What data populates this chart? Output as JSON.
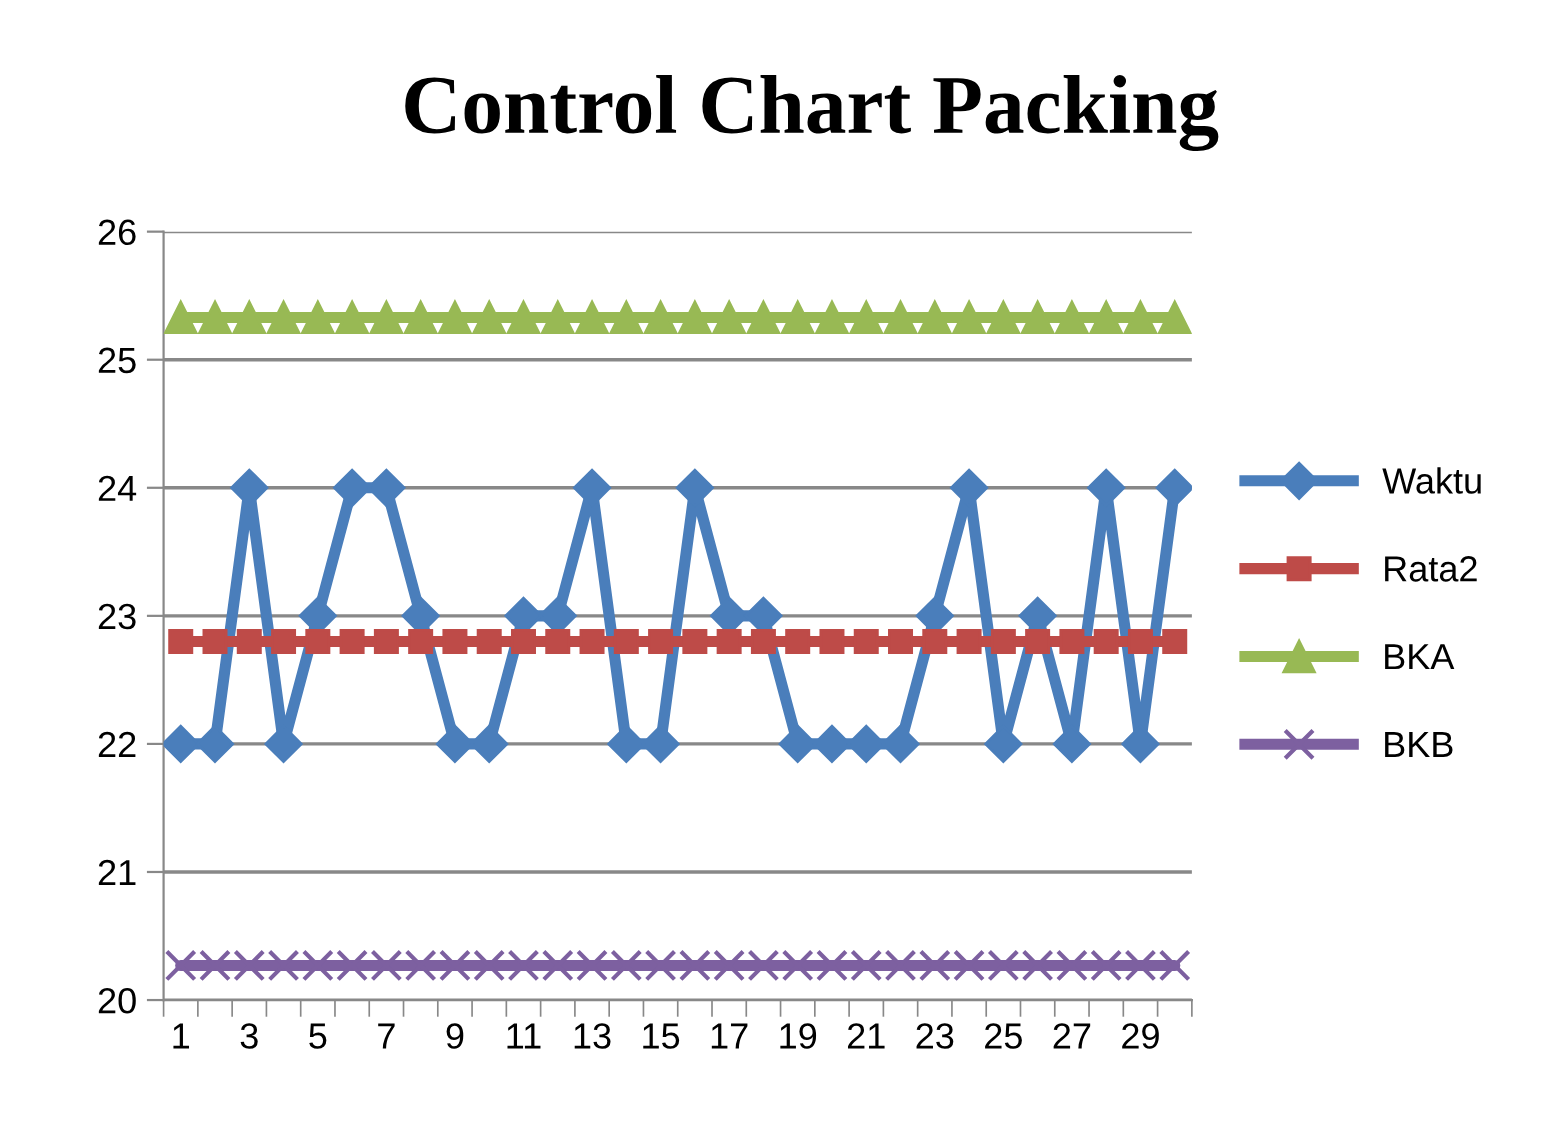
{
  "chart_data": {
    "type": "line",
    "title": "Control Chart Packing",
    "categories": [
      "1",
      null,
      "3",
      null,
      "5",
      null,
      "7",
      null,
      "9",
      null,
      "11",
      null,
      "13",
      null,
      "15",
      null,
      "17",
      null,
      "19",
      null,
      "21",
      null,
      "23",
      null,
      "25",
      null,
      "27",
      null,
      "29",
      null
    ],
    "series": [
      {
        "name": "Waktu",
        "color": "#4a7ebb",
        "marker": "diamond",
        "values": [
          22,
          22,
          24,
          22,
          23,
          24,
          24,
          23,
          22,
          22,
          23,
          23,
          24,
          22,
          22,
          24,
          23,
          23,
          22,
          22,
          22,
          22,
          23,
          24,
          22,
          23,
          22,
          24,
          22,
          24
        ]
      },
      {
        "name": "Rata2",
        "color": "#be4b48",
        "marker": "square",
        "values": [
          22.8,
          22.8,
          22.8,
          22.8,
          22.8,
          22.8,
          22.8,
          22.8,
          22.8,
          22.8,
          22.8,
          22.8,
          22.8,
          22.8,
          22.8,
          22.8,
          22.8,
          22.8,
          22.8,
          22.8,
          22.8,
          22.8,
          22.8,
          22.8,
          22.8,
          22.8,
          22.8,
          22.8,
          22.8,
          22.8
        ]
      },
      {
        "name": "BKA",
        "color": "#98b954",
        "marker": "triangle",
        "values": [
          25.33,
          25.33,
          25.33,
          25.33,
          25.33,
          25.33,
          25.33,
          25.33,
          25.33,
          25.33,
          25.33,
          25.33,
          25.33,
          25.33,
          25.33,
          25.33,
          25.33,
          25.33,
          25.33,
          25.33,
          25.33,
          25.33,
          25.33,
          25.33,
          25.33,
          25.33,
          25.33,
          25.33,
          25.33,
          25.33
        ]
      },
      {
        "name": "BKB",
        "color": "#7d60a0",
        "marker": "cross",
        "values": [
          20.27,
          20.27,
          20.27,
          20.27,
          20.27,
          20.27,
          20.27,
          20.27,
          20.27,
          20.27,
          20.27,
          20.27,
          20.27,
          20.27,
          20.27,
          20.27,
          20.27,
          20.27,
          20.27,
          20.27,
          20.27,
          20.27,
          20.27,
          20.27,
          20.27,
          20.27,
          20.27,
          20.27,
          20.27,
          20.27
        ]
      }
    ],
    "ylim": [
      20,
      26
    ],
    "yticks": [
      20,
      21,
      22,
      23,
      24,
      25,
      26
    ],
    "grid": "y",
    "legend": "right",
    "line_style": "solid"
  }
}
